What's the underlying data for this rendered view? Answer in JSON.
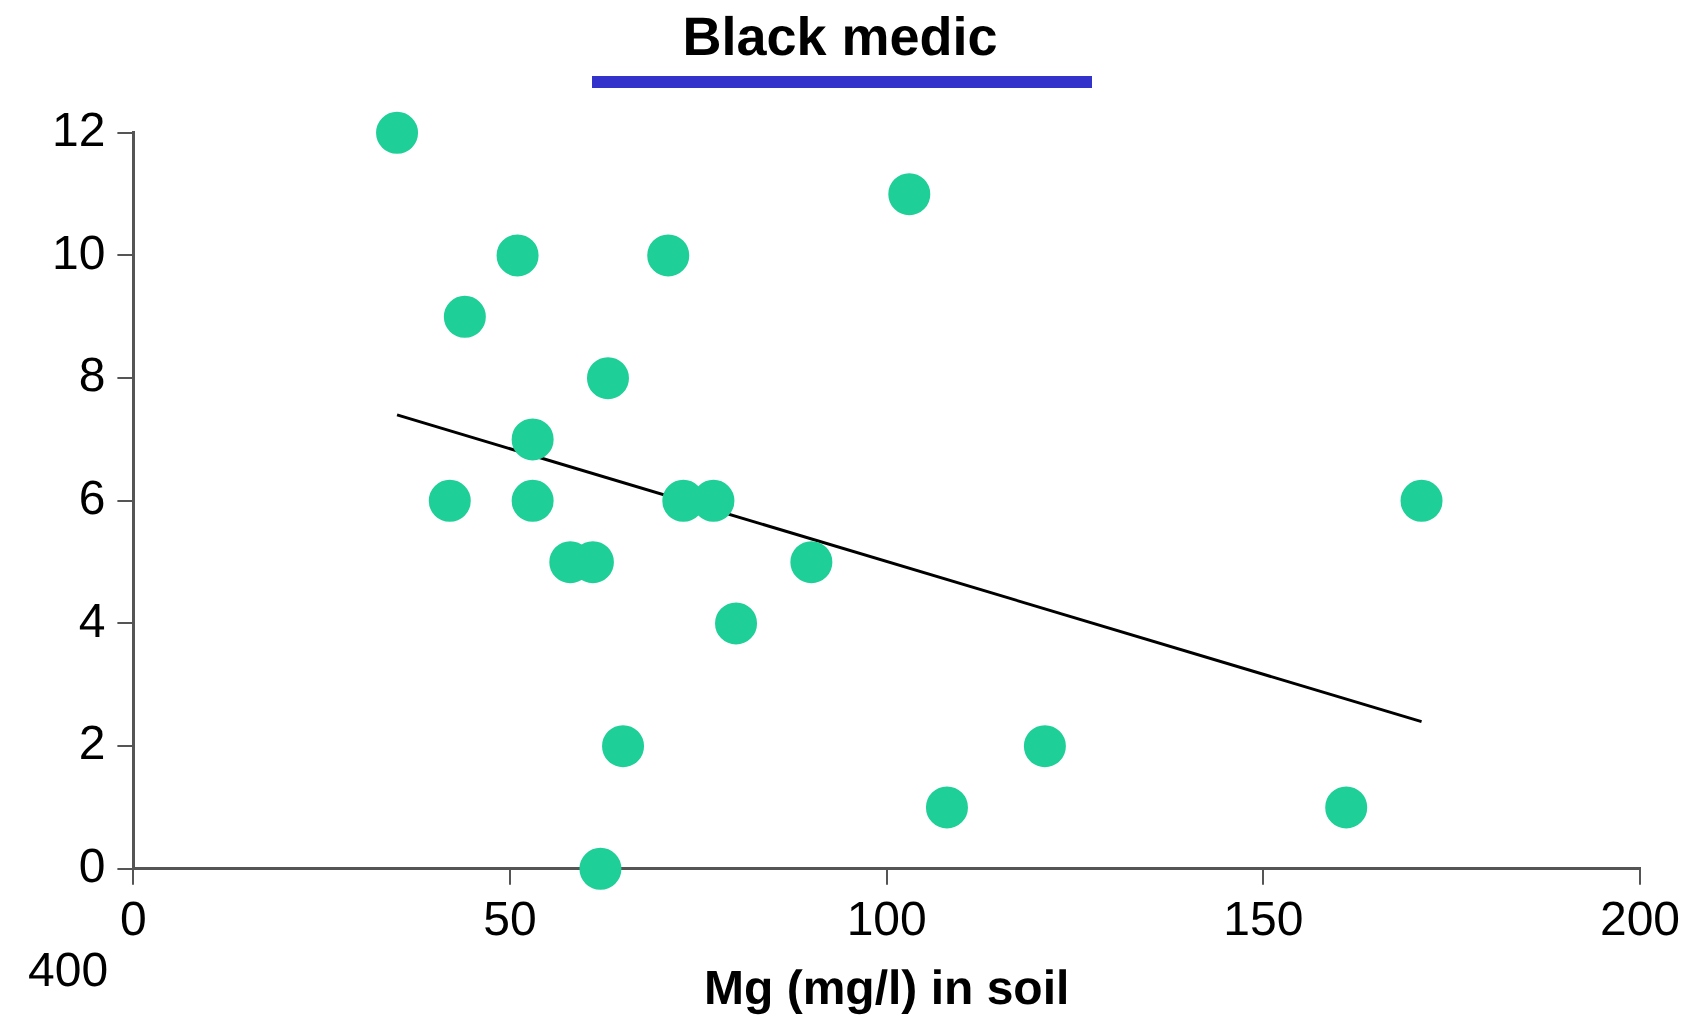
{
  "chart_data": {
    "type": "scatter",
    "title": "Black medic",
    "xlabel": "Mg (mg/l) in soil",
    "series": [
      {
        "type": "scatter",
        "marker": "circle",
        "color": "#1fcf98",
        "x": [
          35,
          51,
          44,
          71,
          103,
          63,
          53,
          42,
          53,
          73,
          77,
          171,
          58,
          61,
          90,
          80,
          65,
          121,
          108,
          161,
          62
        ],
        "values": [
          12,
          10,
          9,
          10,
          11,
          8,
          7,
          6,
          6,
          6,
          6,
          6,
          5,
          5,
          5,
          4,
          2,
          2,
          1,
          1,
          0
        ]
      },
      {
        "type": "line",
        "marker": "none",
        "color": "#000000",
        "x": [
          35,
          171
        ],
        "values": [
          7.4,
          2.4
        ]
      }
    ],
    "xlim": [
      0,
      200
    ],
    "xticks": [
      0,
      50,
      100,
      150,
      200
    ],
    "ylim": [
      0,
      12
    ],
    "yticks": [
      0,
      2,
      4,
      6,
      8,
      10,
      12
    ],
    "grid": false,
    "legend": false,
    "line_style": "solid",
    "annotations": [
      "400"
    ]
  }
}
